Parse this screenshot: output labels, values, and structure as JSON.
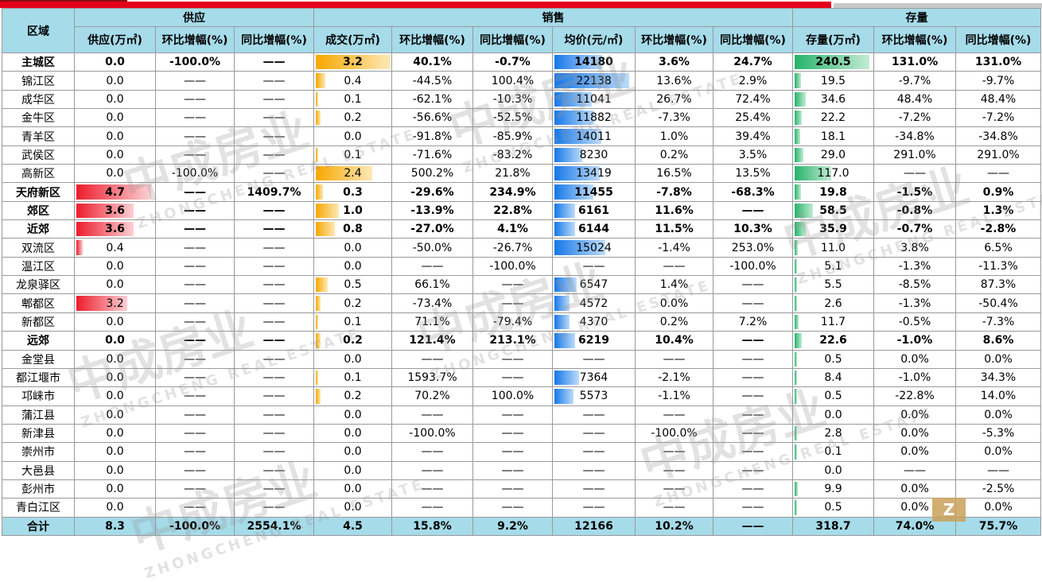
{
  "header": {
    "region": "区域",
    "groups": [
      "供应",
      "销售",
      "存量"
    ],
    "columns": [
      "供应(万㎡)",
      "环比增幅(%)",
      "同比增幅(%)",
      "成交(万㎡)",
      "环比增幅(%)",
      "同比增幅(%)",
      "均价(元/㎡)",
      "环比增幅(%)",
      "同比增幅(%)",
      "存量(万㎡)",
      "环比增幅(%)",
      "同比增幅(%)"
    ]
  },
  "rows": [
    {
      "name": "主城区",
      "bold": true,
      "cells": [
        "0.0",
        "-100.0%",
        "——",
        "3.2",
        "40.1%",
        "-0.7%",
        "14180",
        "3.6%",
        "24.7%",
        "240.5",
        "131.0%",
        "131.0%"
      ]
    },
    {
      "name": "锦江区",
      "bold": false,
      "cells": [
        "0.0",
        "——",
        "——",
        "0.4",
        "-44.5%",
        "100.4%",
        "22138",
        "13.6%",
        "2.9%",
        "19.5",
        "-9.7%",
        "-9.7%"
      ]
    },
    {
      "name": "成华区",
      "bold": false,
      "cells": [
        "0.0",
        "——",
        "——",
        "0.1",
        "-62.1%",
        "-10.3%",
        "11041",
        "26.7%",
        "72.4%",
        "34.6",
        "48.4%",
        "48.4%"
      ]
    },
    {
      "name": "金牛区",
      "bold": false,
      "cells": [
        "0.0",
        "——",
        "——",
        "0.2",
        "-56.6%",
        "-52.5%",
        "11882",
        "-7.3%",
        "25.4%",
        "22.2",
        "-7.2%",
        "-7.2%"
      ]
    },
    {
      "name": "青羊区",
      "bold": false,
      "cells": [
        "0.0",
        "——",
        "——",
        "0.0",
        "-91.8%",
        "-85.9%",
        "14011",
        "1.0%",
        "39.4%",
        "18.1",
        "-34.8%",
        "-34.8%"
      ]
    },
    {
      "name": "武侯区",
      "bold": false,
      "cells": [
        "0.0",
        "——",
        "——",
        "0.1",
        "-71.6%",
        "-83.2%",
        "8230",
        "0.2%",
        "3.5%",
        "29.0",
        "291.0%",
        "291.0%"
      ]
    },
    {
      "name": "高新区",
      "bold": false,
      "cells": [
        "0.0",
        "-100.0%",
        "——",
        "2.4",
        "500.2%",
        "21.8%",
        "13419",
        "16.5%",
        "13.5%",
        "117.0",
        "——",
        "——"
      ]
    },
    {
      "name": "天府新区",
      "bold": true,
      "cells": [
        "4.7",
        "——",
        "1409.7%",
        "0.3",
        "-29.6%",
        "234.9%",
        "11455",
        "-7.8%",
        "-68.3%",
        "19.8",
        "-1.5%",
        "0.9%"
      ]
    },
    {
      "name": "郊区",
      "bold": true,
      "cells": [
        "3.6",
        "——",
        "——",
        "1.0",
        "-13.9%",
        "22.8%",
        "6161",
        "11.6%",
        "——",
        "58.5",
        "-0.8%",
        "1.3%"
      ]
    },
    {
      "name": "近郊",
      "bold": true,
      "cells": [
        "3.6",
        "——",
        "——",
        "0.8",
        "-27.0%",
        "4.1%",
        "6144",
        "11.5%",
        "10.3%",
        "35.9",
        "-0.7%",
        "-2.8%"
      ]
    },
    {
      "name": "双流区",
      "bold": false,
      "cells": [
        "0.4",
        "——",
        "——",
        "0.0",
        "-50.0%",
        "-26.7%",
        "15024",
        "-1.4%",
        "253.0%",
        "11.0",
        "3.8%",
        "6.5%"
      ]
    },
    {
      "name": "温江区",
      "bold": false,
      "cells": [
        "0.0",
        "——",
        "——",
        "0.0",
        "——",
        "-100.0%",
        "——",
        "——",
        "-100.0%",
        "5.1",
        "-1.3%",
        "-11.3%"
      ]
    },
    {
      "name": "龙泉驿区",
      "bold": false,
      "cells": [
        "0.0",
        "——",
        "——",
        "0.5",
        "66.1%",
        "——",
        "6547",
        "1.4%",
        "——",
        "5.5",
        "-8.5%",
        "87.3%"
      ]
    },
    {
      "name": "郫都区",
      "bold": false,
      "cells": [
        "3.2",
        "——",
        "——",
        "0.2",
        "-73.4%",
        "——",
        "4572",
        "0.0%",
        "——",
        "2.6",
        "-1.3%",
        "-50.4%"
      ]
    },
    {
      "name": "新都区",
      "bold": false,
      "cells": [
        "0.0",
        "——",
        "——",
        "0.1",
        "71.1%",
        "-79.4%",
        "4370",
        "0.2%",
        "7.2%",
        "11.7",
        "-0.5%",
        "-7.3%"
      ]
    },
    {
      "name": "远郊",
      "bold": true,
      "cells": [
        "0.0",
        "——",
        "——",
        "0.2",
        "121.4%",
        "213.1%",
        "6219",
        "10.4%",
        "——",
        "22.6",
        "-1.0%",
        "8.6%"
      ]
    },
    {
      "name": "金堂县",
      "bold": false,
      "cells": [
        "0.0",
        "——",
        "——",
        "0.0",
        "——",
        "——",
        "——",
        "——",
        "——",
        "0.5",
        "0.0%",
        "0.0%"
      ]
    },
    {
      "name": "都江堰市",
      "bold": false,
      "cells": [
        "0.0",
        "——",
        "——",
        "0.1",
        "1593.7%",
        "——",
        "7364",
        "-2.1%",
        "——",
        "8.4",
        "-1.0%",
        "34.3%"
      ]
    },
    {
      "name": "邛崃市",
      "bold": false,
      "cells": [
        "0.0",
        "——",
        "——",
        "0.2",
        "70.2%",
        "100.0%",
        "5573",
        "-1.1%",
        "——",
        "0.5",
        "-22.8%",
        "14.0%"
      ]
    },
    {
      "name": "蒲江县",
      "bold": false,
      "cells": [
        "0.0",
        "——",
        "——",
        "0.0",
        "——",
        "——",
        "——",
        "——",
        "——",
        "0.0",
        "0.0%",
        "0.0%"
      ]
    },
    {
      "name": "新津县",
      "bold": false,
      "cells": [
        "0.0",
        "——",
        "——",
        "0.0",
        "-100.0%",
        "——",
        "——",
        "-100.0%",
        "——",
        "2.8",
        "0.0%",
        "-5.3%"
      ]
    },
    {
      "name": "崇州市",
      "bold": false,
      "cells": [
        "0.0",
        "——",
        "——",
        "0.0",
        "——",
        "——",
        "——",
        "——",
        "——",
        "0.1",
        "0.0%",
        "0.0%"
      ]
    },
    {
      "name": "大邑县",
      "bold": false,
      "cells": [
        "0.0",
        "——",
        "——",
        "0.0",
        "——",
        "——",
        "——",
        "——",
        "——",
        "0.0",
        "——",
        "——"
      ]
    },
    {
      "name": "彭州市",
      "bold": false,
      "cells": [
        "0.0",
        "——",
        "——",
        "0.0",
        "——",
        "——",
        "——",
        "——",
        "——",
        "9.9",
        "0.0%",
        "-2.5%"
      ]
    },
    {
      "name": "青白江区",
      "bold": false,
      "cells": [
        "0.0",
        "——",
        "——",
        "0.0",
        "——",
        "——",
        "——",
        "——",
        "——",
        "0.5",
        "0.0%",
        "0.0%"
      ]
    }
  ],
  "total": {
    "name": "合计",
    "cells": [
      "8.3",
      "-100.0%",
      "2554.1%",
      "4.5",
      "15.8%",
      "9.2%",
      "12166",
      "10.2%",
      "——",
      "318.7",
      "74.0%",
      "75.7%"
    ]
  },
  "databar_colors": {
    "supply": "#ee1c2c",
    "deal": "#f7a800",
    "price": "#1577e8",
    "stock": "#26b36a"
  },
  "header_color": "#a6dbe9"
}
